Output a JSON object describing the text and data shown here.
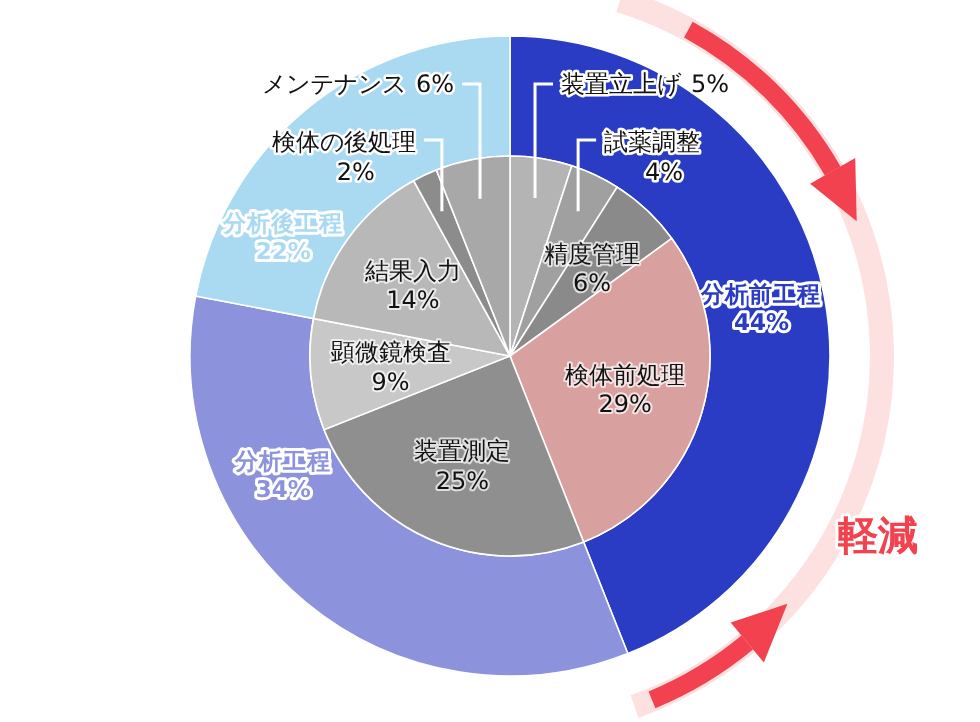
{
  "chart_data": [
    {
      "type": "donut",
      "categories": [
        "分析前工程",
        "分析工程",
        "分析後工程"
      ],
      "values": [
        44,
        34,
        22
      ],
      "value_labels": [
        "44%",
        "34%",
        "22%"
      ],
      "colors": [
        "#2b3cc4",
        "#8c93dc",
        "#a9daf2"
      ],
      "annotations": [
        "軽減"
      ]
    },
    {
      "type": "pie",
      "categories": [
        "装置立上げ",
        "試薬調整",
        "精度管理",
        "検体前処理",
        "装置測定",
        "顕微鏡検査",
        "結果入力",
        "検体の後処理",
        "メンテナンス"
      ],
      "values": [
        5,
        4,
        6,
        29,
        25,
        9,
        14,
        2,
        6
      ],
      "value_labels": [
        "5%",
        "4%",
        "6%",
        "29%",
        "25%",
        "9%",
        "14%",
        "2%",
        "6%"
      ],
      "colors": [
        "#b4b4b4",
        "#a0a0a0",
        "#8a8a8a",
        "#d9a0a0",
        "#8f8f8f",
        "#c8c8c8",
        "#b8b8b8",
        "#8c8c8c",
        "#a8a8a8"
      ]
    }
  ]
}
